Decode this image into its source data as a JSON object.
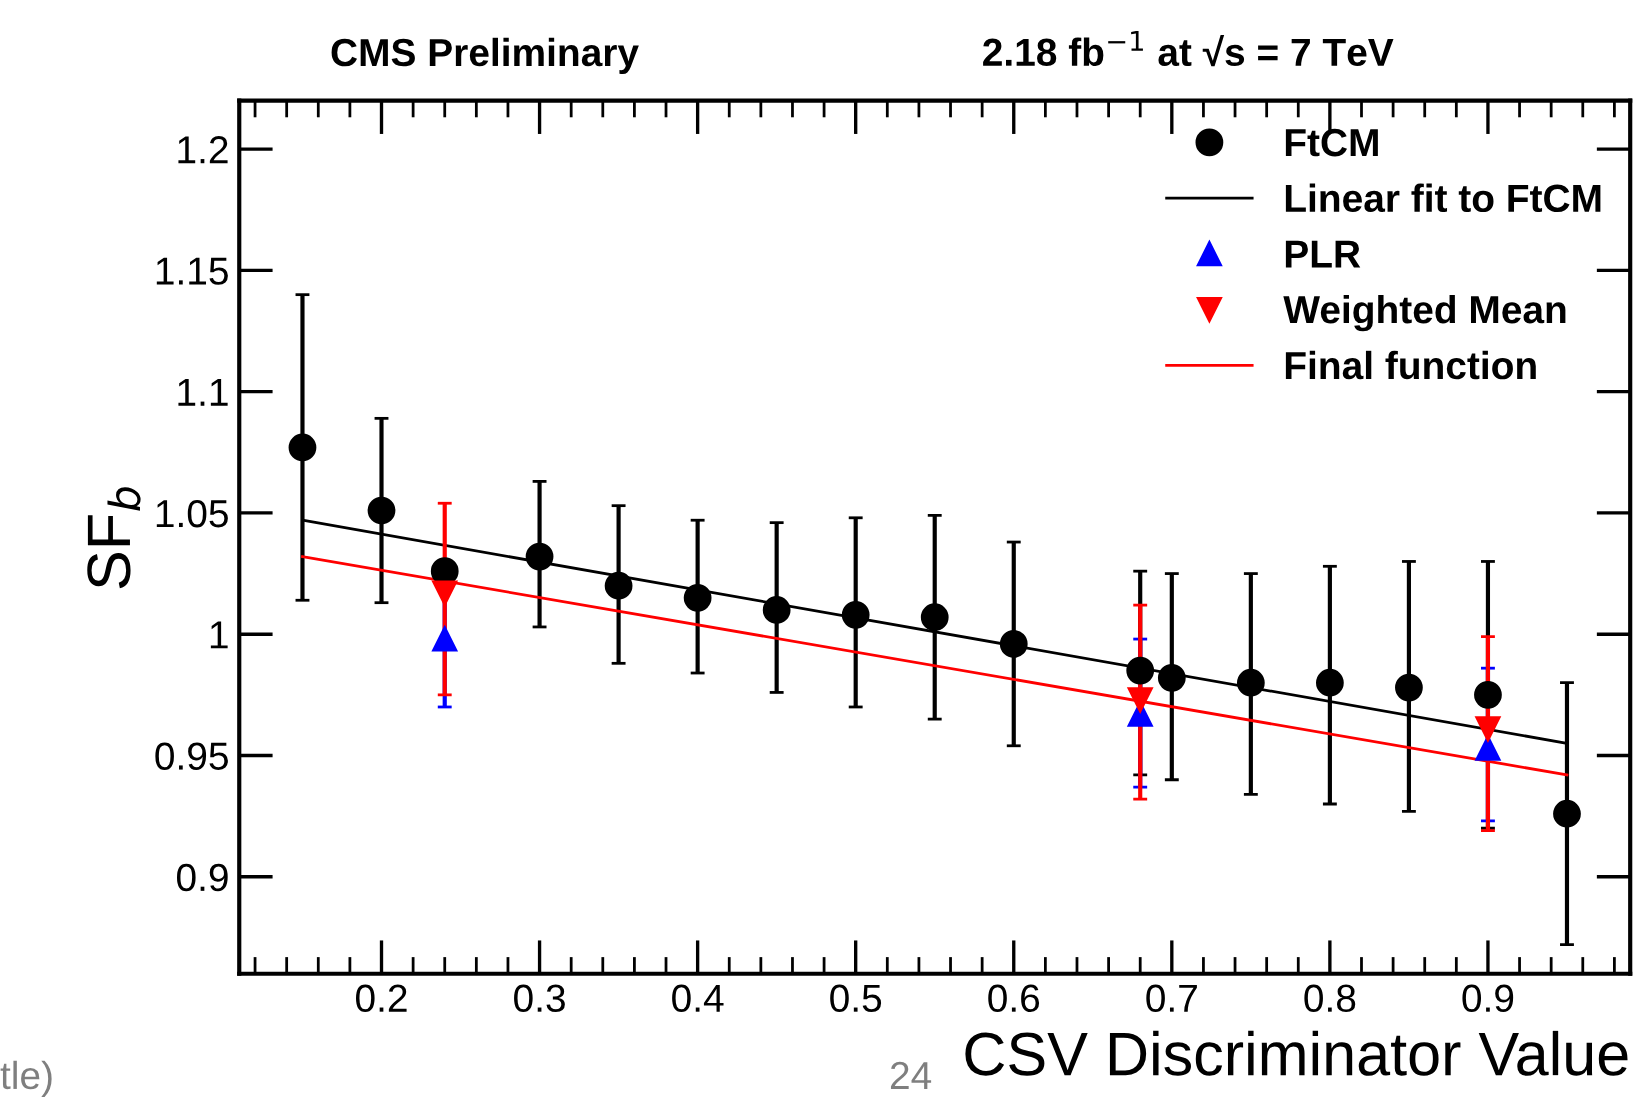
{
  "chart_data": {
    "type": "scatter",
    "title": "CMS Preliminary",
    "subtitle": "2.18 fb$^{−1}$ at √s = 7 TeV",
    "xlabel": "CSV Discriminator Value",
    "ylabel": "SF$_{b}$",
    "xlim": [
      0.11,
      0.99
    ],
    "xticks": [
      0.2,
      0.3,
      0.4,
      0.5,
      0.6,
      0.7,
      0.8,
      0.9
    ],
    "ylim": [
      0.86,
      1.22
    ],
    "yticks": [
      0.9,
      0.95,
      {
        "value": 1,
        "label": "1"
      },
      1.05,
      1.1,
      1.15,
      1.2
    ],
    "grid": false,
    "legend": "top right",
    "annotations": [
      "tle)",
      "24"
    ],
    "series": [
      {
        "name": "FtCM",
        "marker": "circle",
        "color": "#000000",
        "x": [
          0.15,
          0.2,
          0.24,
          0.3,
          0.35,
          0.4,
          0.45,
          0.5,
          0.55,
          0.6,
          0.68,
          0.7,
          0.75,
          0.8,
          0.85,
          0.9,
          0.95
        ],
        "values": [
          1.077,
          1.051,
          1.026,
          1.032,
          1.02,
          1.015,
          1.01,
          1.008,
          1.007,
          0.996,
          0.985,
          0.982,
          0.98,
          0.98,
          0.978,
          0.975,
          0.926
        ],
        "errors": [
          [
            1.014,
            1.14
          ],
          [
            1.013,
            1.089
          ],
          null,
          [
            1.003,
            1.063
          ],
          [
            0.988,
            1.053
          ],
          [
            0.984,
            1.047
          ],
          [
            0.976,
            1.046
          ],
          [
            0.97,
            1.048
          ],
          [
            0.965,
            1.049
          ],
          [
            0.954,
            1.038
          ],
          [
            0.942,
            1.026
          ],
          [
            0.94,
            1.025
          ],
          [
            0.934,
            1.025
          ],
          [
            0.93,
            1.028
          ],
          [
            0.927,
            1.03
          ],
          [
            0.92,
            1.03
          ],
          [
            0.872,
            0.98
          ]
        ]
      },
      {
        "name": "Linear fit to FtCM",
        "type": "line",
        "marker": "none",
        "color": "#000000",
        "x": [
          0.15,
          0.95
        ],
        "values": [
          1.047,
          0.955
        ]
      },
      {
        "name": "PLR",
        "marker": "triangle",
        "color": "#0000ff",
        "x": [
          0.24,
          0.68,
          0.9
        ],
        "values": [
          0.998,
          0.967,
          0.953
        ],
        "errors": [
          [
            0.97,
            1.03
          ],
          [
            0.937,
            0.998
          ],
          [
            0.923,
            0.986
          ]
        ]
      },
      {
        "name": "Weighted Mean",
        "marker": "triangle_down",
        "color": "#ff0000",
        "x": [
          0.24,
          0.68,
          0.9
        ],
        "values": [
          1.017,
          0.973,
          0.961
        ],
        "errors": [
          [
            0.975,
            1.054
          ],
          [
            0.932,
            1.012
          ],
          [
            0.919,
            0.999
          ]
        ]
      },
      {
        "name": "Final function",
        "type": "line",
        "marker": "none",
        "color": "#ff0000",
        "x": [
          0.15,
          0.95
        ],
        "values": [
          1.032,
          0.942
        ]
      }
    ]
  }
}
